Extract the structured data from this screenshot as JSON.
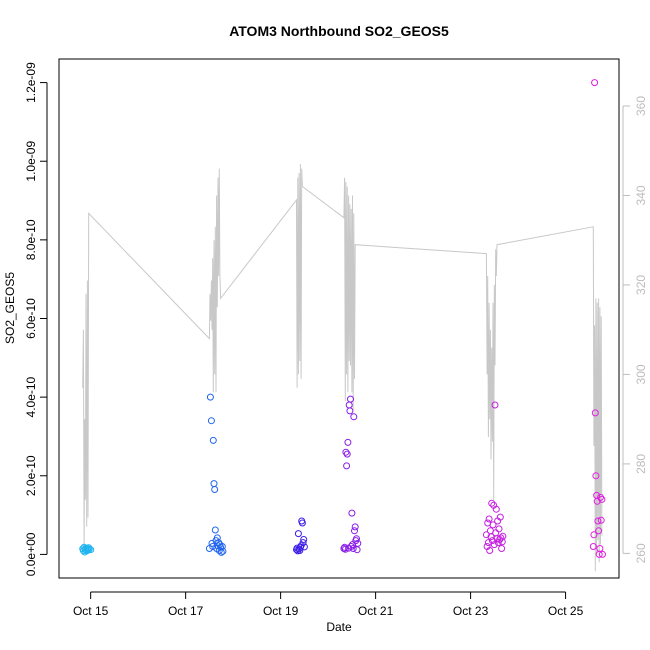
{
  "chart_data": {
    "type": "scatter",
    "title": "ATOM3 Northbound SO2_GEOS5",
    "xlabel": "Date",
    "ylabel": "SO2_GEOS5",
    "x_ticks": [
      "Oct 15",
      "Oct 17",
      "Oct 19",
      "Oct 21",
      "Oct 23",
      "Oct 25"
    ],
    "xlim": [
      "2017-10-14 08:00",
      "2017-10-26 03:00"
    ],
    "ylim": [
      -6e-11,
      1.26e-09
    ],
    "y_ticks": [
      "0.0e+00",
      "2.0e-10",
      "4.0e-10",
      "6.0e-10",
      "8.0e-10",
      "1.0e-09",
      "1.2e-09"
    ],
    "y_tick_values": [
      0,
      2e-10,
      4e-10,
      6e-10,
      8e-10,
      1e-09,
      1.2e-09
    ],
    "y2_ticks": [
      "260",
      "280",
      "300",
      "320",
      "340",
      "360"
    ],
    "y2_tick_values": [
      260,
      280,
      300,
      320,
      340,
      360
    ],
    "y2lim": [
      254.5,
      370.5
    ],
    "grid": false,
    "legend": "none",
    "colors": {
      "line": "#c8c8c8",
      "right_axis": "#bdbdbd",
      "flight1": "#1fb3f0",
      "flight2": "#2266ee",
      "flight3": "#3d1ee8",
      "flight4": "#8a1de8",
      "flight5": "#c520e0",
      "flight6": "#e21ee0"
    },
    "line_series": {
      "axis": "right",
      "points": [
        [
          "2017-10-14 20:00",
          297
        ],
        [
          "2017-10-14 20:20",
          310
        ],
        [
          "2017-10-14 20:40",
          261
        ],
        [
          "2017-10-14 21:00",
          290
        ],
        [
          "2017-10-14 21:20",
          272
        ],
        [
          "2017-10-14 21:40",
          318
        ],
        [
          "2017-10-14 22:00",
          266
        ],
        [
          "2017-10-14 22:20",
          321
        ],
        [
          "2017-10-14 22:40",
          268
        ],
        [
          "2017-10-14 23:00",
          336
        ],
        [
          "2017-10-17 12:00",
          308
        ],
        [
          "2017-10-17 12:20",
          318
        ],
        [
          "2017-10-17 12:40",
          312
        ],
        [
          "2017-10-17 13:00",
          321
        ],
        [
          "2017-10-17 13:20",
          310
        ],
        [
          "2017-10-17 13:40",
          326
        ],
        [
          "2017-10-17 14:00",
          296
        ],
        [
          "2017-10-17 14:20",
          330
        ],
        [
          "2017-10-17 14:40",
          300
        ],
        [
          "2017-10-17 15:00",
          333
        ],
        [
          "2017-10-17 15:20",
          296
        ],
        [
          "2017-10-17 15:40",
          340
        ],
        [
          "2017-10-17 16:00",
          315
        ],
        [
          "2017-10-17 16:20",
          344
        ],
        [
          "2017-10-17 16:40",
          322
        ],
        [
          "2017-10-17 17:00",
          346
        ],
        [
          "2017-10-17 17:20",
          322
        ],
        [
          "2017-10-17 17:40",
          317
        ],
        [
          "2017-10-19 08:00",
          339
        ],
        [
          "2017-10-19 08:20",
          297
        ],
        [
          "2017-10-19 08:40",
          344
        ],
        [
          "2017-10-19 09:00",
          300
        ],
        [
          "2017-10-19 09:20",
          345
        ],
        [
          "2017-10-19 09:40",
          303
        ],
        [
          "2017-10-19 10:00",
          347
        ],
        [
          "2017-10-19 10:20",
          299
        ],
        [
          "2017-10-19 10:40",
          346
        ],
        [
          "2017-10-19 11:00",
          342
        ],
        [
          "2017-10-20 08:00",
          335
        ],
        [
          "2017-10-20 08:20",
          344
        ],
        [
          "2017-10-20 08:40",
          294
        ],
        [
          "2017-10-20 09:00",
          343
        ],
        [
          "2017-10-20 09:20",
          300
        ],
        [
          "2017-10-20 09:40",
          342
        ],
        [
          "2017-10-20 10:00",
          296
        ],
        [
          "2017-10-20 10:20",
          340
        ],
        [
          "2017-10-20 10:40",
          303
        ],
        [
          "2017-10-20 11:00",
          338
        ],
        [
          "2017-10-20 11:20",
          302
        ],
        [
          "2017-10-20 11:40",
          337
        ],
        [
          "2017-10-20 12:00",
          296
        ],
        [
          "2017-10-20 12:20",
          340
        ],
        [
          "2017-10-20 12:40",
          292
        ],
        [
          "2017-10-20 13:00",
          336
        ],
        [
          "2017-10-20 13:20",
          299
        ],
        [
          "2017-10-20 13:40",
          329
        ],
        [
          "2017-10-23 08:00",
          327
        ],
        [
          "2017-10-23 08:20",
          300
        ],
        [
          "2017-10-23 08:40",
          322
        ],
        [
          "2017-10-23 09:00",
          286
        ],
        [
          "2017-10-23 09:20",
          316
        ],
        [
          "2017-10-23 09:40",
          290
        ],
        [
          "2017-10-23 10:00",
          310
        ],
        [
          "2017-10-23 10:20",
          281
        ],
        [
          "2017-10-23 10:40",
          306
        ],
        [
          "2017-10-23 11:00",
          285
        ],
        [
          "2017-10-23 11:20",
          316
        ],
        [
          "2017-10-23 11:40",
          272
        ],
        [
          "2017-10-23 12:00",
          320
        ],
        [
          "2017-10-23 12:20",
          302
        ],
        [
          "2017-10-23 12:40",
          328
        ],
        [
          "2017-10-23 13:00",
          322
        ],
        [
          "2017-10-23 13:20",
          329
        ],
        [
          "2017-10-25 14:00",
          333
        ],
        [
          "2017-10-25 14:20",
          284
        ],
        [
          "2017-10-25 14:40",
          311
        ],
        [
          "2017-10-25 15:00",
          256
        ],
        [
          "2017-10-25 15:20",
          317
        ],
        [
          "2017-10-25 15:40",
          260
        ],
        [
          "2017-10-25 16:00",
          316
        ],
        [
          "2017-10-25 16:20",
          263
        ],
        [
          "2017-10-25 16:40",
          317
        ],
        [
          "2017-10-25 17:00",
          258
        ],
        [
          "2017-10-25 17:20",
          315
        ],
        [
          "2017-10-25 17:40",
          262
        ],
        [
          "2017-10-25 18:00",
          313
        ],
        [
          "2017-10-25 18:20",
          264
        ]
      ]
    },
    "series": [
      {
        "color_key": "flight1",
        "points": [
          [
            "2017-10-14 20:00",
            1.4e-11
          ],
          [
            "2017-10-14 20:20",
            1e-11
          ],
          [
            "2017-10-14 20:40",
            1.8e-11
          ],
          [
            "2017-10-14 21:00",
            6e-12
          ],
          [
            "2017-10-14 21:20",
            1.2e-11
          ],
          [
            "2017-10-14 21:40",
            1.6e-11
          ],
          [
            "2017-10-14 22:00",
            9e-12
          ],
          [
            "2017-10-14 22:20",
            1.5e-11
          ],
          [
            "2017-10-14 22:40",
            1.1e-11
          ],
          [
            "2017-10-14 23:00",
            1.7e-11
          ],
          [
            "2017-10-14 23:20",
            1.3e-11
          ],
          [
            "2017-10-15 00:00",
            1.2e-11
          ]
        ]
      },
      {
        "color_key": "flight2",
        "points": [
          [
            "2017-10-17 12:00",
            1.5e-11
          ],
          [
            "2017-10-17 12:30",
            4e-10
          ],
          [
            "2017-10-17 13:00",
            3.4e-10
          ],
          [
            "2017-10-17 13:20",
            2.8e-11
          ],
          [
            "2017-10-17 14:00",
            2.9e-10
          ],
          [
            "2017-10-17 14:20",
            1.8e-10
          ],
          [
            "2017-10-17 14:40",
            1.65e-10
          ],
          [
            "2017-10-17 15:00",
            6.2e-11
          ],
          [
            "2017-10-17 15:20",
            3.5e-11
          ],
          [
            "2017-10-17 15:40",
            1.5e-11
          ],
          [
            "2017-10-17 16:00",
            4.2e-11
          ],
          [
            "2017-10-17 16:20",
            2.2e-11
          ],
          [
            "2017-10-17 16:40",
            3e-11
          ],
          [
            "2017-10-17 17:00",
            1e-11
          ],
          [
            "2017-10-17 17:20",
            2.5e-11
          ],
          [
            "2017-10-17 17:40",
            1.8e-11
          ],
          [
            "2017-10-17 18:00",
            5e-12
          ],
          [
            "2017-10-17 18:30",
            2e-11
          ],
          [
            "2017-10-17 13:40",
            2e-11
          ],
          [
            "2017-10-17 18:50",
            8e-12
          ]
        ]
      },
      {
        "color_key": "flight3",
        "points": [
          [
            "2017-10-19 08:00",
            1.2e-11
          ],
          [
            "2017-10-19 08:20",
            1.6e-11
          ],
          [
            "2017-10-19 08:40",
            9e-12
          ],
          [
            "2017-10-19 09:00",
            5.3e-11
          ],
          [
            "2017-10-19 09:20",
            1.4e-11
          ],
          [
            "2017-10-19 09:40",
            1e-11
          ],
          [
            "2017-10-19 10:00",
            1.8e-11
          ],
          [
            "2017-10-19 10:20",
            2.2e-11
          ],
          [
            "2017-10-19 10:40",
            8.5e-11
          ],
          [
            "2017-10-19 11:00",
            8e-11
          ],
          [
            "2017-10-19 11:20",
            3e-11
          ],
          [
            "2017-10-19 11:40",
            3.8e-11
          ],
          [
            "2017-10-19 12:00",
            1.9e-11
          ]
        ]
      },
      {
        "color_key": "flight4",
        "points": [
          [
            "2017-10-20 08:00",
            1.5e-11
          ],
          [
            "2017-10-20 08:20",
            1.8e-11
          ],
          [
            "2017-10-20 08:40",
            1.3e-11
          ],
          [
            "2017-10-20 09:00",
            2.6e-10
          ],
          [
            "2017-10-20 09:20",
            2.25e-10
          ],
          [
            "2017-10-20 09:40",
            2.55e-10
          ],
          [
            "2017-10-20 10:00",
            2.85e-10
          ],
          [
            "2017-10-20 10:20",
            1.6e-11
          ],
          [
            "2017-10-20 10:40",
            3.8e-10
          ],
          [
            "2017-10-20 11:00",
            3.65e-10
          ],
          [
            "2017-10-20 11:20",
            3.95e-10
          ],
          [
            "2017-10-20 11:40",
            2e-11
          ],
          [
            "2017-10-20 12:00",
            1.05e-10
          ],
          [
            "2017-10-20 12:20",
            2.5e-11
          ],
          [
            "2017-10-20 12:40",
            1.5e-11
          ],
          [
            "2017-10-20 13:00",
            3.5e-10
          ],
          [
            "2017-10-20 13:20",
            6e-11
          ],
          [
            "2017-10-20 13:40",
            7e-11
          ],
          [
            "2017-10-20 14:00",
            3.5e-11
          ],
          [
            "2017-10-20 14:20",
            4e-11
          ],
          [
            "2017-10-20 14:40",
            1.2e-11
          ],
          [
            "2017-10-20 15:00",
            2.8e-11
          ]
        ]
      },
      {
        "color_key": "flight5",
        "points": [
          [
            "2017-10-23 08:00",
            5e-11
          ],
          [
            "2017-10-23 08:20",
            2e-11
          ],
          [
            "2017-10-23 08:40",
            8e-11
          ],
          [
            "2017-10-23 09:00",
            3e-11
          ],
          [
            "2017-10-23 09:20",
            9e-11
          ],
          [
            "2017-10-23 09:40",
            1e-11
          ],
          [
            "2017-10-23 10:00",
            6e-11
          ],
          [
            "2017-10-23 10:20",
            4.5e-11
          ],
          [
            "2017-10-23 10:40",
            1.3e-10
          ],
          [
            "2017-10-23 11:00",
            3.5e-11
          ],
          [
            "2017-10-23 11:20",
            7.5e-11
          ],
          [
            "2017-10-23 11:40",
            1.25e-10
          ],
          [
            "2017-10-23 12:00",
            2.5e-11
          ],
          [
            "2017-10-23 12:20",
            3.8e-10
          ],
          [
            "2017-10-23 12:40",
            5.5e-11
          ],
          [
            "2017-10-23 13:00",
            1.15e-10
          ],
          [
            "2017-10-23 13:20",
            4e-11
          ],
          [
            "2017-10-23 13:40",
            8.5e-11
          ],
          [
            "2017-10-23 14:00",
            3e-11
          ],
          [
            "2017-10-23 14:20",
            6.5e-11
          ],
          [
            "2017-10-23 14:40",
            3.8e-11
          ],
          [
            "2017-10-23 15:00",
            9.5e-11
          ],
          [
            "2017-10-23 15:20",
            4.2e-11
          ],
          [
            "2017-10-23 15:40",
            1.5e-11
          ],
          [
            "2017-10-23 16:00",
            3.2e-11
          ],
          [
            "2017-10-23 16:20",
            4.6e-11
          ]
        ]
      },
      {
        "color_key": "flight6",
        "points": [
          [
            "2017-10-25 14:00",
            2e-11
          ],
          [
            "2017-10-25 14:20",
            5e-11
          ],
          [
            "2017-10-25 14:40",
            1.2e-09
          ],
          [
            "2017-10-25 15:00",
            3.6e-10
          ],
          [
            "2017-10-25 15:20",
            2e-10
          ],
          [
            "2017-10-25 15:40",
            1.5e-10
          ],
          [
            "2017-10-25 16:00",
            1.35e-10
          ],
          [
            "2017-10-25 16:20",
            8.5e-11
          ],
          [
            "2017-10-25 16:40",
            6e-11
          ],
          [
            "2017-10-25 17:00",
            0.0
          ],
          [
            "2017-10-25 17:20",
            1.5e-11
          ],
          [
            "2017-10-25 17:40",
            1.45e-10
          ],
          [
            "2017-10-25 18:00",
            8.7e-11
          ],
          [
            "2017-10-25 18:20",
            1.4e-10
          ],
          [
            "2017-10-25 18:40",
            0.0
          ]
        ]
      }
    ]
  }
}
